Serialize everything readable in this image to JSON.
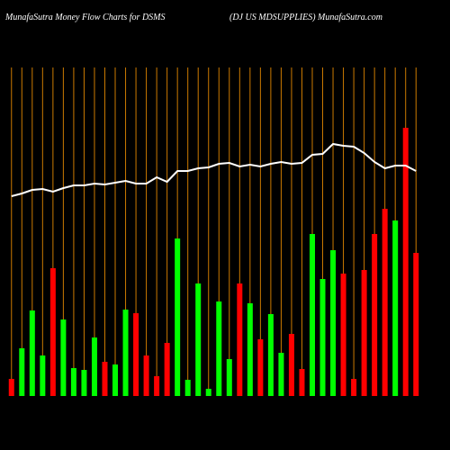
{
  "chart_data": {
    "type": "bar",
    "title": "MunafaSutra  Money Flow  Charts for DSMS",
    "subtitle": "(DJ US MDSUPPLIES) MunafaSutra.com",
    "categories": [
      null,
      null,
      null,
      null,
      null,
      null,
      null,
      null,
      null,
      null,
      null,
      null,
      null,
      null,
      null,
      null,
      null,
      null,
      null,
      null,
      null,
      null,
      null,
      null,
      null,
      null,
      null,
      null,
      null,
      null,
      null,
      null,
      null,
      null,
      null,
      null,
      null,
      null,
      null,
      null
    ],
    "values": [
      19,
      53,
      95,
      45,
      142,
      85,
      31,
      29,
      65,
      38,
      35,
      96,
      92,
      45,
      22,
      59,
      175,
      18,
      125,
      8,
      105,
      41,
      125,
      103,
      63,
      91,
      48,
      69,
      30,
      180,
      130,
      162,
      136,
      19,
      140,
      180,
      208,
      195,
      298,
      159
    ],
    "colors": [
      "#ff0000",
      "#00ff00",
      "#00ff00",
      "#00ff00",
      "#ff0000",
      "#00ff00",
      "#00ff00",
      "#00ff00",
      "#00ff00",
      "#ff0000",
      "#00ff00",
      "#00ff00",
      "#ff0000",
      "#ff0000",
      "#ff0000",
      "#ff0000",
      "#00ff00",
      "#00ff00",
      "#00ff00",
      "#00ff00",
      "#00ff00",
      "#00ff00",
      "#ff0000",
      "#00ff00",
      "#ff0000",
      "#00ff00",
      "#00ff00",
      "#ff0000",
      "#ff0000",
      "#00ff00",
      "#00ff00",
      "#00ff00",
      "#ff0000",
      "#ff0000",
      "#ff0000",
      "#ff0000",
      "#ff0000",
      "#00ff00",
      "#ff0000",
      "#ff0000"
    ],
    "line": {
      "color": "#ffffff",
      "values": [
        222,
        225,
        229,
        230,
        227,
        231,
        234,
        234,
        236,
        235,
        237,
        239,
        236,
        236,
        243,
        238,
        250,
        250,
        253,
        254,
        258,
        259,
        255,
        257,
        255,
        258,
        260,
        258,
        259,
        268,
        269,
        280,
        278,
        277,
        270,
        260,
        253,
        256,
        256,
        250
      ]
    },
    "ylim": [
      0,
      380
    ],
    "separator_color": "#cc7a00"
  }
}
